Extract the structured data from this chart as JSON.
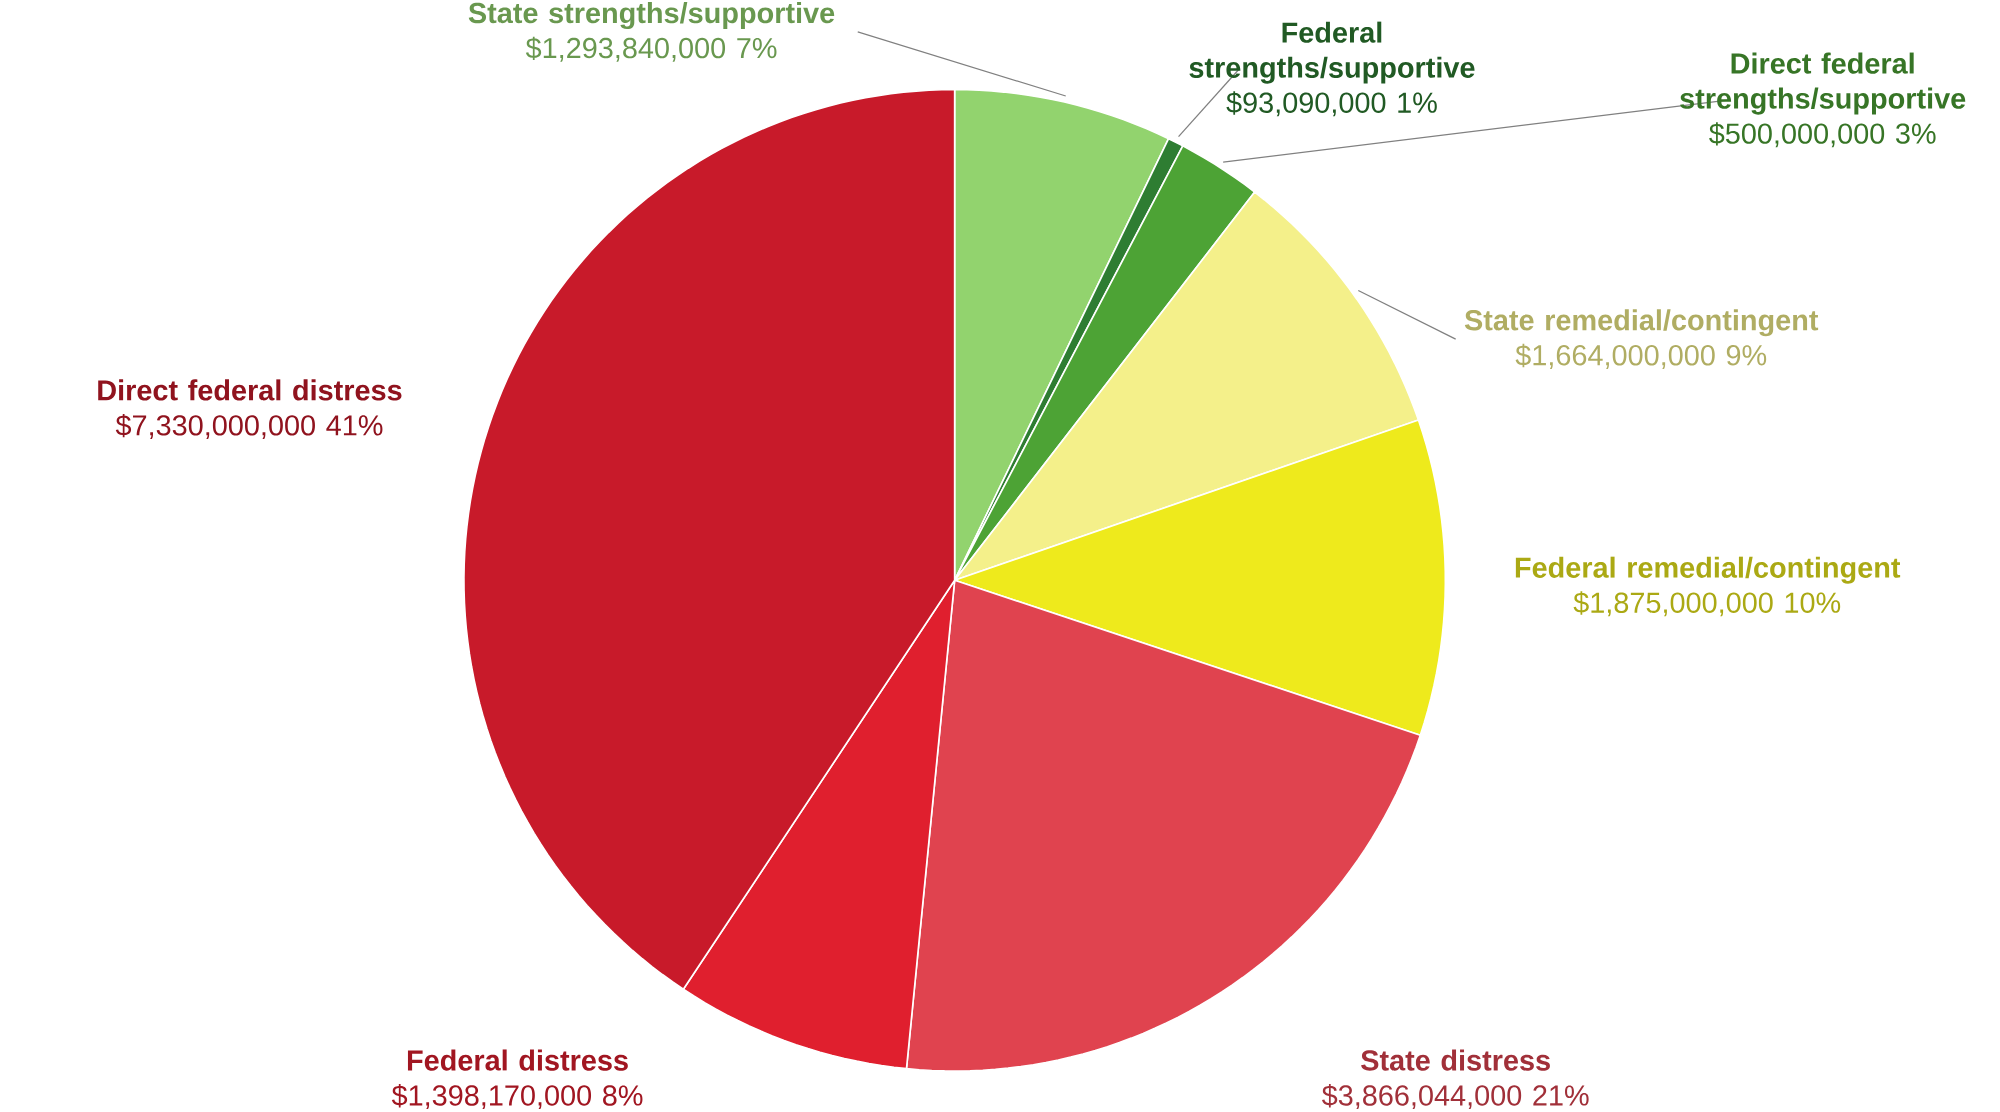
{
  "chart_data": {
    "type": "pie",
    "categories": [
      "State strengths/supportive",
      "Federal strengths/supportive",
      "Direct federal strengths/supportive",
      "State remedial/contingent",
      "Federal remedial/contingent",
      "State distress",
      "Federal distress",
      "Direct federal distress"
    ],
    "values": [
      1293840000,
      93090000,
      500000000,
      1664000000,
      1875000000,
      3866044000,
      1398170000,
      7330000000
    ],
    "value_labels": [
      "$1,293,840,000 7%",
      "$93,090,000 1%",
      "$500,000,000 3%",
      "$1,664,000,000 9%",
      "$1,875,000,000 10%",
      "$3,866,044,000 21%",
      "$1,398,170,000 8%",
      "$7,330,000,000 41%"
    ],
    "colors": [
      "#92d36e",
      "#2e7d32",
      "#4da335",
      "#f4f08a",
      "#eeea1c",
      "#e0434f",
      "#e01f2e",
      "#c81a2a"
    ]
  }
}
